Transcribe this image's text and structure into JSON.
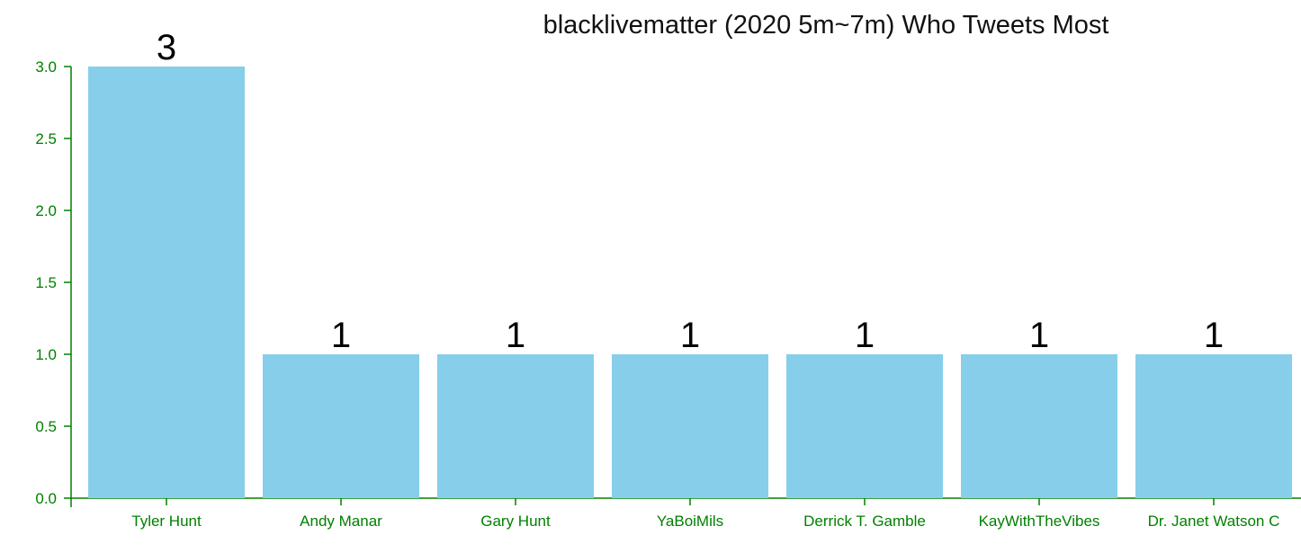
{
  "chart_data": {
    "type": "bar",
    "title": "blacklivematter (2020 5m~7m) Who Tweets Most",
    "xlabel": "",
    "ylabel": "",
    "categories": [
      "Tyler Hunt",
      "Andy Manar",
      "Gary Hunt",
      "YaBoiMils",
      "Derrick T. Gamble",
      "KayWithTheVibes",
      "Dr. Janet Watson C"
    ],
    "values": [
      3,
      1,
      1,
      1,
      1,
      1,
      1
    ],
    "ylim": [
      0,
      3
    ],
    "yticks": [
      "0.0",
      "0.5",
      "1.0",
      "1.5",
      "2.0",
      "2.5",
      "3.0"
    ],
    "data_labels": [
      "3",
      "1",
      "1",
      "1",
      "1",
      "1",
      "1"
    ],
    "grid": false,
    "legend": "none",
    "colors": {
      "bar": "#87ceeb",
      "axis": "#008000",
      "tick_text": "#008000",
      "label_text": "#000000"
    }
  }
}
